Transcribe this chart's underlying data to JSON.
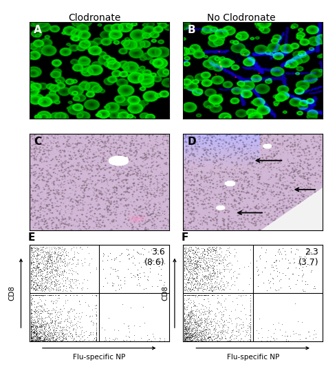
{
  "title_left": "Clodronate",
  "title_right": "No Clodronate",
  "panel_labels": [
    "A",
    "B",
    "C",
    "D",
    "E",
    "F"
  ],
  "flow_E_annotation": "3.6\n(8.6)",
  "flow_F_annotation": "2.3\n(3.7)",
  "xlabel": "Flu-specific NP",
  "ylabel_flow": "CD8",
  "bg_color": "#ffffff",
  "panel_label_fontsize": 11,
  "title_fontsize": 10,
  "annotation_fontsize": 9,
  "axis_label_fontsize": 7.5,
  "seed_E": 42,
  "seed_F": 99,
  "seed_A": 10,
  "seed_B": 20,
  "seed_C": 30,
  "seed_D": 40
}
